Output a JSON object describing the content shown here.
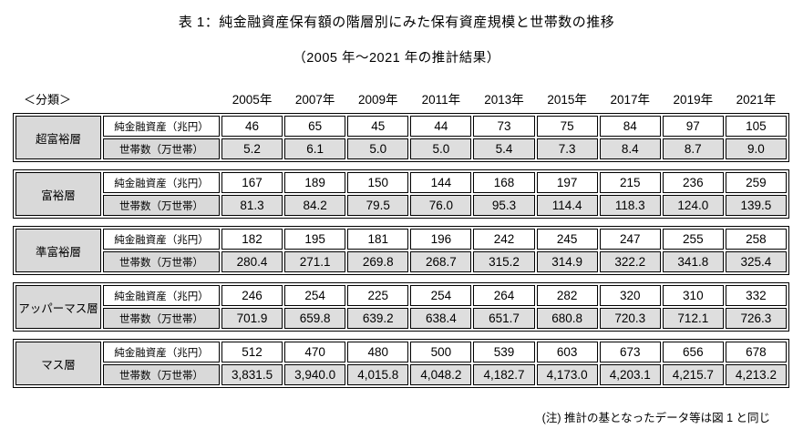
{
  "title": {
    "line1": "表 1：純金融資産保有額の階層別にみた保有資産規模と世帯数の推移",
    "line2": "（2005 年～2021 年の推計結果）"
  },
  "table": {
    "class_header": "＜分類＞",
    "years": [
      "2005年",
      "2007年",
      "2009年",
      "2011年",
      "2013年",
      "2015年",
      "2017年",
      "2019年",
      "2021年"
    ],
    "row_labels": [
      "純金融資産（兆円）",
      "世帯数（万世帯）"
    ],
    "groups": [
      {
        "category": "超富裕層",
        "asset": [
          "46",
          "65",
          "45",
          "44",
          "73",
          "75",
          "84",
          "97",
          "105"
        ],
        "households": [
          "5.2",
          "6.1",
          "5.0",
          "5.0",
          "5.4",
          "7.3",
          "8.4",
          "8.7",
          "9.0"
        ]
      },
      {
        "category": "富裕層",
        "asset": [
          "167",
          "189",
          "150",
          "144",
          "168",
          "197",
          "215",
          "236",
          "259"
        ],
        "households": [
          "81.3",
          "84.2",
          "79.5",
          "76.0",
          "95.3",
          "114.4",
          "118.3",
          "124.0",
          "139.5"
        ]
      },
      {
        "category": "準富裕層",
        "asset": [
          "182",
          "195",
          "181",
          "196",
          "242",
          "245",
          "247",
          "255",
          "258"
        ],
        "households": [
          "280.4",
          "271.1",
          "269.8",
          "268.7",
          "315.2",
          "314.9",
          "322.2",
          "341.8",
          "325.4"
        ]
      },
      {
        "category": "アッパーマス層",
        "asset": [
          "246",
          "254",
          "225",
          "254",
          "264",
          "282",
          "320",
          "310",
          "332"
        ],
        "households": [
          "701.9",
          "659.8",
          "639.2",
          "638.4",
          "651.7",
          "680.8",
          "720.3",
          "712.1",
          "726.3"
        ]
      },
      {
        "category": "マス層",
        "asset": [
          "512",
          "470",
          "480",
          "500",
          "539",
          "603",
          "673",
          "656",
          "678"
        ],
        "households": [
          "3,831.5",
          "3,940.0",
          "4,015.8",
          "4,048.2",
          "4,182.7",
          "4,173.0",
          "4,203.1",
          "4,215.7",
          "4,213.2"
        ]
      }
    ]
  },
  "note": "(注) 推計の基となったデータ等は図 1 と同じ",
  "colors": {
    "border": "#000000",
    "gray_fill": "#d9d9d9",
    "text": "#000000",
    "background": "#ffffff"
  },
  "chart_data": {
    "type": "table",
    "title": "表1：純金融資産保有額の階層別にみた保有資産規模と世帯数の推移（2005年～2021年の推計結果）",
    "columns": [
      "2005年",
      "2007年",
      "2009年",
      "2011年",
      "2013年",
      "2015年",
      "2017年",
      "2019年",
      "2021年"
    ],
    "rows": [
      {
        "category": "超富裕層",
        "metric": "純金融資産（兆円）",
        "values": [
          46,
          65,
          45,
          44,
          73,
          75,
          84,
          97,
          105
        ]
      },
      {
        "category": "超富裕層",
        "metric": "世帯数（万世帯）",
        "values": [
          5.2,
          6.1,
          5.0,
          5.0,
          5.4,
          7.3,
          8.4,
          8.7,
          9.0
        ]
      },
      {
        "category": "富裕層",
        "metric": "純金融資産（兆円）",
        "values": [
          167,
          189,
          150,
          144,
          168,
          197,
          215,
          236,
          259
        ]
      },
      {
        "category": "富裕層",
        "metric": "世帯数（万世帯）",
        "values": [
          81.3,
          84.2,
          79.5,
          76.0,
          95.3,
          114.4,
          118.3,
          124.0,
          139.5
        ]
      },
      {
        "category": "準富裕層",
        "metric": "純金融資産（兆円）",
        "values": [
          182,
          195,
          181,
          196,
          242,
          245,
          247,
          255,
          258
        ]
      },
      {
        "category": "準富裕層",
        "metric": "世帯数（万世帯）",
        "values": [
          280.4,
          271.1,
          269.8,
          268.7,
          315.2,
          314.9,
          322.2,
          341.8,
          325.4
        ]
      },
      {
        "category": "アッパーマス層",
        "metric": "純金融資産（兆円）",
        "values": [
          246,
          254,
          225,
          254,
          264,
          282,
          320,
          310,
          332
        ]
      },
      {
        "category": "アッパーマス層",
        "metric": "世帯数（万世帯）",
        "values": [
          701.9,
          659.8,
          639.2,
          638.4,
          651.7,
          680.8,
          720.3,
          712.1,
          726.3
        ]
      },
      {
        "category": "マス層",
        "metric": "純金融資産（兆円）",
        "values": [
          512,
          470,
          480,
          500,
          539,
          603,
          673,
          656,
          678
        ]
      },
      {
        "category": "マス層",
        "metric": "世帯数（万世帯）",
        "values": [
          3831.5,
          3940.0,
          4015.8,
          4048.2,
          4182.7,
          4173.0,
          4203.1,
          4215.7,
          4213.2
        ]
      }
    ],
    "note": "(注) 推計の基となったデータ等は図1と同じ"
  }
}
